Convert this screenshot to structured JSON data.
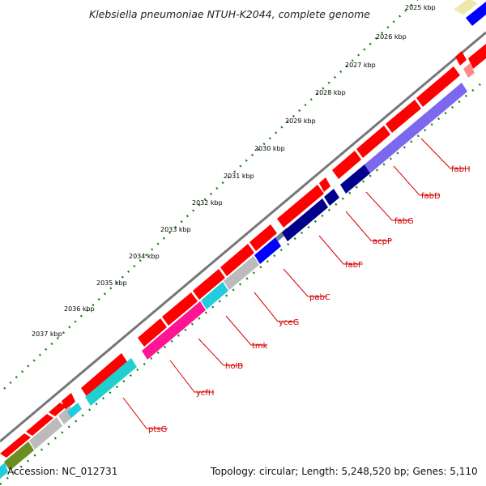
{
  "title": "Klebsiella pneumoniae NTUH-K2044, complete genome",
  "footer": {
    "accession": "Accession: NC_012731",
    "summary": "Topology: circular; Length: 5,248,520 bp; Genes: 5,110"
  },
  "kbp_labels": [
    "2025 kbp",
    "2026 kbp",
    "2027 kbp",
    "2028 kbp",
    "2029 kbp",
    "2030 kbp",
    "2031 kbp",
    "2032 kbp",
    "2033 kbp",
    "2034 kbp",
    "2035 kbp",
    "2036 kbp",
    "2037 kbp"
  ],
  "gene_labels": [
    "fabH",
    "fabD",
    "fabG",
    "acpP",
    "fabF",
    "pabC",
    "yceG",
    "tmk",
    "holB",
    "ycfH",
    "ptsG"
  ],
  "colors": {
    "cds": "#ff0000",
    "fab_purple": "#7b68ee",
    "navy": "#00008b",
    "blue": "#0000ff",
    "gray": "#bbbbbb",
    "cyan": "#22ccdd",
    "pink": "#ff1493",
    "teal": "#20d0d0",
    "olive": "#6b8e23",
    "label_red": "#d40000",
    "tick_green": "#118811",
    "backbone": "#777777"
  }
}
